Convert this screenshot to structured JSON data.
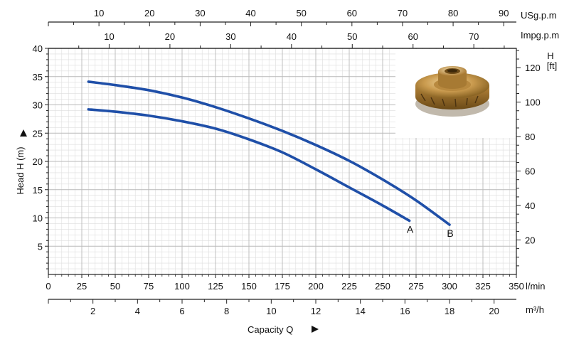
{
  "chart_data": {
    "type": "line",
    "title": "",
    "series": [
      {
        "name": "A",
        "x": [
          30,
          50,
          75,
          100,
          125,
          150,
          175,
          200,
          225,
          250,
          270
        ],
        "y": [
          29.2,
          28.8,
          28.1,
          27.1,
          25.8,
          23.9,
          21.6,
          18.6,
          15.4,
          12.2,
          9.5
        ]
      },
      {
        "name": "B",
        "x": [
          30,
          50,
          75,
          100,
          125,
          150,
          175,
          200,
          225,
          250,
          275,
          300
        ],
        "y": [
          34.1,
          33.5,
          32.6,
          31.3,
          29.6,
          27.6,
          25.4,
          22.9,
          20.1,
          16.8,
          13.1,
          8.8
        ]
      }
    ],
    "x_axis": {
      "label": "Capacity Q",
      "unit": "l/min",
      "range": [
        0,
        350
      ],
      "ticks": [
        "0",
        "25",
        "50",
        "75",
        "100",
        "125",
        "150",
        "175",
        "200",
        "225",
        "250",
        "275",
        "300",
        "325",
        "350"
      ]
    },
    "x_axis_m3h": {
      "unit": "m³/h",
      "range": [
        0,
        21
      ],
      "ticks": [
        "2",
        "4",
        "6",
        "8",
        "10",
        "12",
        "14",
        "16",
        "18",
        "20"
      ]
    },
    "x_axis_usgpm": {
      "unit": "USg.p.m",
      "range": [
        0,
        92.5
      ],
      "ticks": [
        "10",
        "20",
        "30",
        "40",
        "50",
        "60",
        "70",
        "80",
        "90"
      ]
    },
    "x_axis_impgpm": {
      "unit": "Impg.p.m",
      "range": [
        0,
        77
      ],
      "ticks": [
        "10",
        "20",
        "30",
        "40",
        "50",
        "60",
        "70"
      ]
    },
    "y_axis": {
      "label": "Head H (m)",
      "range": [
        0,
        40
      ],
      "ticks": [
        "5",
        "10",
        "15",
        "20",
        "25",
        "30",
        "35",
        "40"
      ]
    },
    "y_axis_ft": {
      "label_h": "H",
      "label_unit": "[ft]",
      "range": [
        0,
        131.2
      ],
      "ticks": [
        "20",
        "40",
        "60",
        "80",
        "100",
        "120"
      ]
    },
    "grid": true,
    "curve_color": "#1f4fa8",
    "inset_image": "bronze-impeller"
  }
}
